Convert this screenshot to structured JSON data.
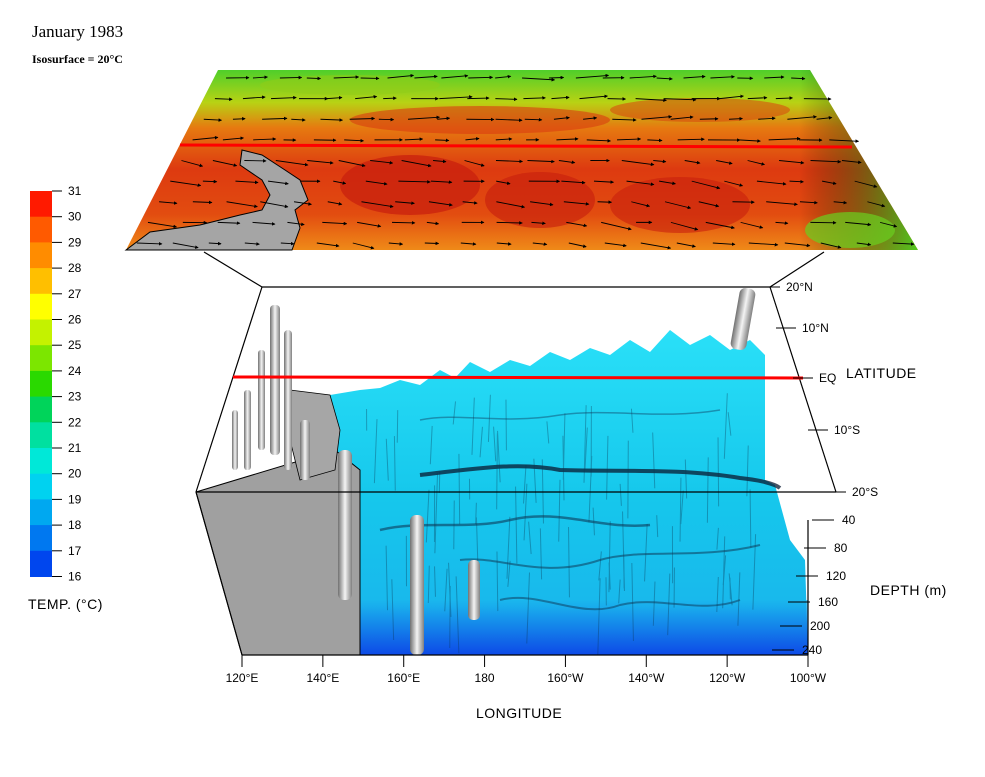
{
  "title": "January 1983",
  "subtitle": "Isosurface = 20°C",
  "colorbar": {
    "title": "TEMP. (°C)",
    "ticks": [
      "31",
      "30",
      "29",
      "28",
      "27",
      "26",
      "25",
      "24",
      "23",
      "22",
      "21",
      "20",
      "19",
      "18",
      "17",
      "16"
    ],
    "colors": [
      "#ff1a00",
      "#ff5a00",
      "#ff8c00",
      "#ffbf00",
      "#ffff00",
      "#c4f200",
      "#7ce600",
      "#2ad900",
      "#00d45a",
      "#00e0a0",
      "#00e8d8",
      "#00d2f0",
      "#00a8f0",
      "#0078f0",
      "#0046ee",
      "#0014ee"
    ]
  },
  "axes": {
    "longitude": {
      "title": "LONGITUDE",
      "ticks": [
        "120°E",
        "140°E",
        "160°E",
        "180",
        "160°W",
        "140°W",
        "120°W",
        "100°W"
      ]
    },
    "latitude": {
      "title": "LATITUDE",
      "ticks": [
        "20°N",
        "10°N",
        "EQ",
        "10°S",
        "20°S"
      ]
    },
    "depth": {
      "title": "DEPTH (m)",
      "ticks": [
        "40",
        "80",
        "120",
        "160",
        "200",
        "240"
      ]
    }
  },
  "colors": {
    "equator_line": "#ff0000",
    "isosurface": "#1ed4f2",
    "land": "#a0a0a0",
    "box_lines": "#000000"
  }
}
